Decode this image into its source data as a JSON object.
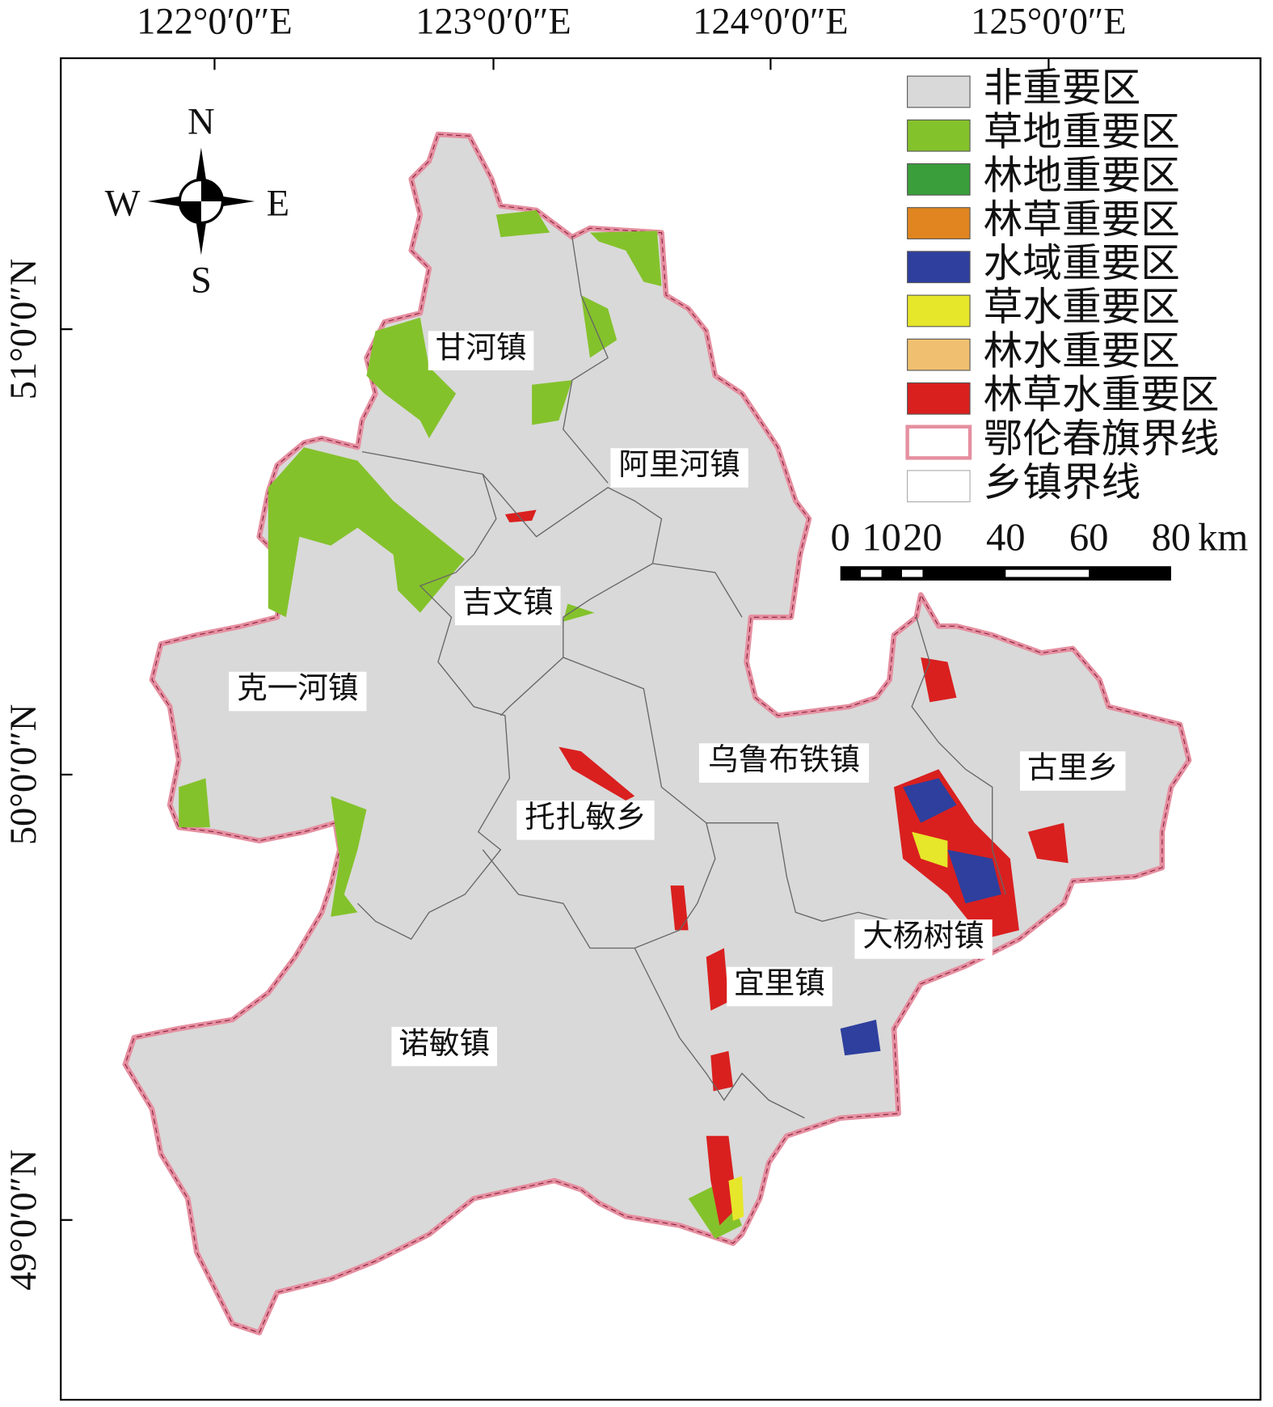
{
  "map": {
    "top_axis_labels": [
      "122°0′0″E",
      "123°0′0″E",
      "124°0′0″E",
      "125°0′0″E"
    ],
    "left_axis_labels": [
      "51°0′0″N",
      "50°0′0″N",
      "49°0′0″N"
    ],
    "compass": {
      "north": "N",
      "south": "S",
      "west": "W",
      "east": "E"
    },
    "legend": [
      {
        "label": "非重要区",
        "color": "#d9d9d9"
      },
      {
        "label": "草地重要区",
        "color": "#84c22b"
      },
      {
        "label": "林地重要区",
        "color": "#3a9e3a"
      },
      {
        "label": "林草重要区",
        "color": "#e0851f"
      },
      {
        "label": "水域重要区",
        "color": "#2e3f9e"
      },
      {
        "label": "草水重要区",
        "color": "#e6e62a"
      },
      {
        "label": "林水重要区",
        "color": "#f0c070"
      },
      {
        "label": "林草水重要区",
        "color": "#d9201f"
      },
      {
        "label": "鄂伦春旗界线",
        "color": "#e58fa0"
      },
      {
        "label": "乡镇界线",
        "color": "#aaaaaa"
      }
    ],
    "scale_bar": {
      "labels": [
        "0",
        "10",
        "20",
        "40",
        "60",
        "80"
      ],
      "unit": "km"
    },
    "towns": [
      "甘河镇",
      "阿里河镇",
      "吉文镇",
      "克一河镇",
      "乌鲁布铁镇",
      "古里乡",
      "托扎敏乡",
      "大杨树镇",
      "宜里镇",
      "诺敏镇"
    ]
  }
}
